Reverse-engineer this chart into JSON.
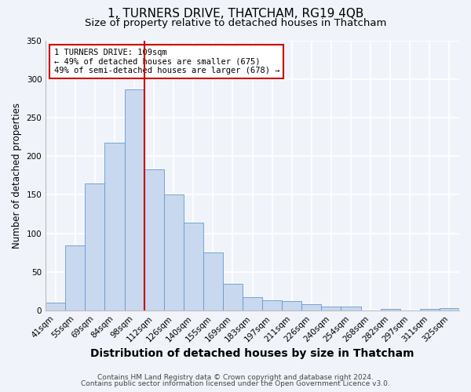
{
  "title": "1, TURNERS DRIVE, THATCHAM, RG19 4QB",
  "subtitle": "Size of property relative to detached houses in Thatcham",
  "xlabel": "Distribution of detached houses by size in Thatcham",
  "ylabel": "Number of detached properties",
  "bin_labels": [
    "41sqm",
    "55sqm",
    "69sqm",
    "84sqm",
    "98sqm",
    "112sqm",
    "126sqm",
    "140sqm",
    "155sqm",
    "169sqm",
    "183sqm",
    "197sqm",
    "211sqm",
    "226sqm",
    "240sqm",
    "254sqm",
    "268sqm",
    "282sqm",
    "297sqm",
    "311sqm",
    "325sqm"
  ],
  "bar_heights": [
    10,
    85,
    165,
    218,
    287,
    183,
    150,
    114,
    75,
    35,
    17,
    13,
    12,
    8,
    5,
    5,
    0,
    2,
    0,
    2,
    3
  ],
  "bar_color": "#c8d8ef",
  "bar_edge_color": "#6699cc",
  "vline_color": "#cc0000",
  "vline_x_index": 5,
  "annotation_text": "1 TURNERS DRIVE: 109sqm\n← 49% of detached houses are smaller (675)\n49% of semi-detached houses are larger (678) →",
  "annotation_box_color": "#ffffff",
  "annotation_box_edge": "#cc0000",
  "ylim": [
    0,
    350
  ],
  "yticks": [
    0,
    50,
    100,
    150,
    200,
    250,
    300,
    350
  ],
  "footer1": "Contains HM Land Registry data © Crown copyright and database right 2024.",
  "footer2": "Contains public sector information licensed under the Open Government Licence v3.0.",
  "background_color": "#f0f4fa",
  "grid_color": "#ffffff",
  "title_fontsize": 11,
  "subtitle_fontsize": 9.5,
  "xlabel_fontsize": 10,
  "ylabel_fontsize": 8.5,
  "tick_fontsize": 7.5,
  "annotation_fontsize": 7.5,
  "footer_fontsize": 6.5
}
